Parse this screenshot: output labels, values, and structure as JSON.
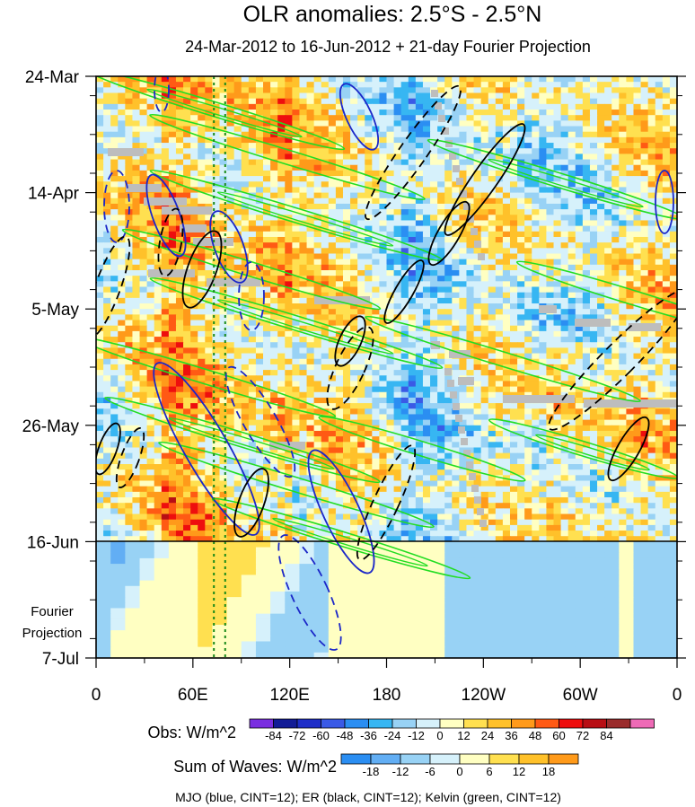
{
  "chart_data": {
    "type": "heatmap",
    "title": "OLR anomalies: 2.5°S - 2.5°N",
    "subtitle": "24-Mar-2012 to 16-Jun-2012 + 21-day Fourier Projection",
    "x_ticks": [
      "0",
      "60E",
      "120E",
      "180",
      "120W",
      "60W",
      "0"
    ],
    "x_tick_values": [
      0,
      60,
      120,
      180,
      240,
      300,
      360
    ],
    "xlim": [
      0,
      360
    ],
    "y_ticks": [
      "24-Mar",
      "14-Apr",
      "5-May",
      "26-May",
      "16-Jun",
      "7-Jul"
    ],
    "y_tick_days": [
      0,
      21,
      42,
      63,
      84,
      105
    ],
    "ylim_days": [
      0,
      105
    ],
    "observation_end": "16-Jun",
    "projection_label_line1": "Fourier",
    "projection_label_line2": "Projection",
    "reference_longitudes": [
      73,
      80
    ],
    "obs_colorbar": {
      "label": "Obs: W/m^2",
      "levels": [
        "-84",
        "-72",
        "-60",
        "-48",
        "-36",
        "-24",
        "-12",
        "0",
        "12",
        "24",
        "36",
        "48",
        "60",
        "72",
        "84"
      ],
      "colors": [
        "#7a2ee0",
        "#121c96",
        "#1e2ec8",
        "#3a5ae6",
        "#2b8ef2",
        "#37b6f2",
        "#98d2f5",
        "#d6f1fb",
        "#ffffc2",
        "#ffe050",
        "#ffc12a",
        "#ff9a1a",
        "#ff5a14",
        "#ee0e0e",
        "#b80e14",
        "#9a2c2c",
        "#ee6ab6"
      ]
    },
    "waves_colorbar": {
      "label": "Sum of Waves: W/m^2",
      "levels": [
        "-18",
        "-12",
        "-6",
        "0",
        "6",
        "12",
        "18"
      ],
      "colors": [
        "#2b8ef2",
        "#62aef4",
        "#98d2f5",
        "#d6f1fb",
        "#ffffc2",
        "#ffe050",
        "#ffc12a",
        "#ff9a1a"
      ]
    },
    "contour_legend": "MJO (blue, CINT=12); ER (black, CINT=12); Kelvin (green, CINT=12)",
    "contour_colors": {
      "MJO": "#1b27c8",
      "ER": "#000000",
      "Kelvin": "#22dd22"
    }
  }
}
